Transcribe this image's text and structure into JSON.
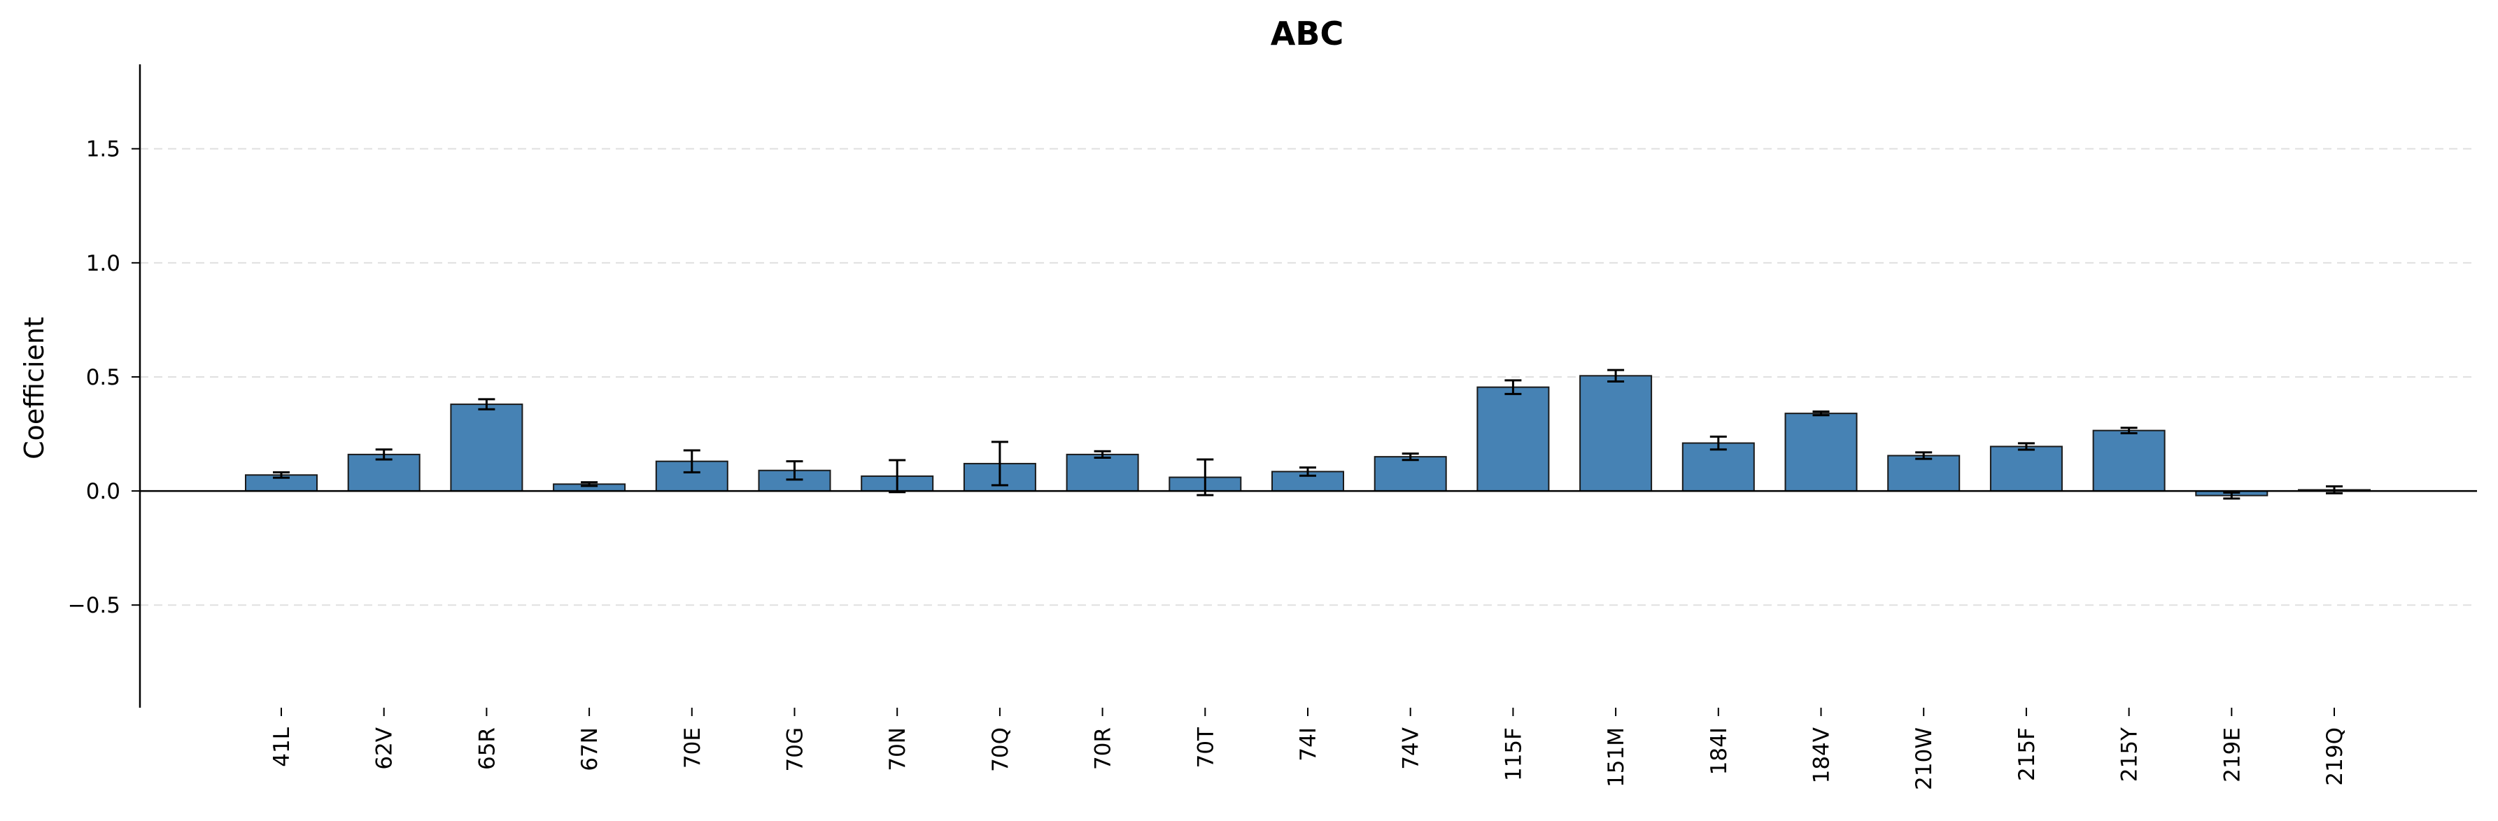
{
  "chart_data": {
    "type": "bar",
    "title": "ABC",
    "xlabel": "",
    "ylabel": "Coefficient",
    "ylim": [
      -0.95,
      1.87
    ],
    "yticks": [
      -0.5,
      0.0,
      0.5,
      1.0,
      1.5
    ],
    "ytick_labels": [
      "−0.5",
      "0.0",
      "0.5",
      "1.0",
      "1.5"
    ],
    "grid": "horizontal dashed",
    "categories": [
      "41L",
      "62V",
      "65R",
      "67N",
      "70E",
      "70G",
      "70N",
      "70Q",
      "70R",
      "70T",
      "74I",
      "74V",
      "115F",
      "151M",
      "184I",
      "184V",
      "210W",
      "215F",
      "215Y",
      "219E",
      "219Q"
    ],
    "values": [
      0.07,
      0.16,
      0.38,
      0.03,
      0.13,
      0.09,
      0.065,
      0.12,
      0.16,
      0.06,
      0.085,
      0.15,
      0.455,
      0.505,
      0.21,
      0.34,
      0.155,
      0.195,
      0.265,
      -0.02,
      0.005
    ],
    "errors": [
      0.012,
      0.022,
      0.022,
      0.008,
      0.048,
      0.04,
      0.07,
      0.095,
      0.014,
      0.078,
      0.018,
      0.014,
      0.03,
      0.025,
      0.028,
      0.008,
      0.014,
      0.014,
      0.012,
      0.013,
      0.015
    ],
    "colors": {
      "bar": "#4682b4",
      "edge": "#1a1a1a",
      "grid": "#e0e0e0",
      "axis": "#000000"
    }
  }
}
